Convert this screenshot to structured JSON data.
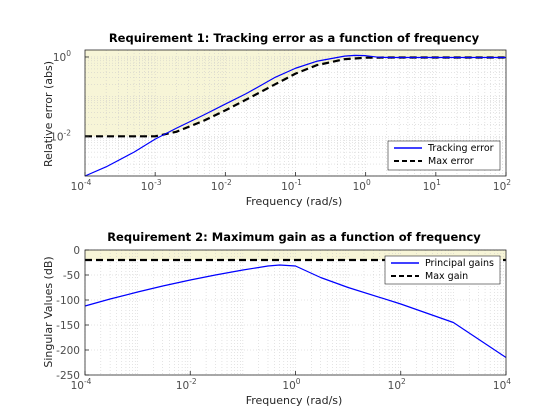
{
  "chart_data": [
    {
      "type": "line",
      "title": "Requirement 1: Tracking error as a function of frequency",
      "xlabel": "Frequency (rad/s)",
      "ylabel": "Relative error (abs)",
      "xscale": "log",
      "yscale": "log",
      "xlim": [
        0.0001,
        100
      ],
      "ylim": [
        0.001,
        1.5
      ],
      "x_ticks": [
        {
          "base": "10",
          "exp": "-4",
          "value": 0.0001
        },
        {
          "base": "10",
          "exp": "-3",
          "value": 0.001
        },
        {
          "base": "10",
          "exp": "-2",
          "value": 0.01
        },
        {
          "base": "10",
          "exp": "-1",
          "value": 0.1
        },
        {
          "base": "10",
          "exp": "0",
          "value": 1
        },
        {
          "base": "10",
          "exp": "1",
          "value": 10
        },
        {
          "base": "10",
          "exp": "2",
          "value": 100
        }
      ],
      "y_ticks": [
        {
          "base": "10",
          "exp": "-2",
          "value": 0.01
        },
        {
          "base": "10",
          "exp": "0",
          "value": 1
        }
      ],
      "grid": "minor",
      "shaded_region": "above max error",
      "legend": "bottom-right",
      "series": [
        {
          "name": "Tracking error",
          "color": "#0000ff",
          "style": "solid",
          "x": [
            0.0001,
            0.0002,
            0.0005,
            0.001,
            0.002,
            0.005,
            0.01,
            0.02,
            0.05,
            0.1,
            0.2,
            0.5,
            0.7,
            1,
            1.5,
            2,
            5,
            10,
            100
          ],
          "y": [
            0.001,
            0.0017,
            0.004,
            0.0085,
            0.016,
            0.035,
            0.065,
            0.12,
            0.3,
            0.52,
            0.78,
            1.05,
            1.1,
            1.08,
            0.99,
            0.97,
            0.97,
            0.97,
            0.97
          ]
        },
        {
          "name": "Max error",
          "color": "#000000",
          "style": "dashed",
          "x": [
            0.0001,
            0.001,
            0.002,
            0.005,
            0.01,
            0.02,
            0.05,
            0.1,
            0.2,
            0.5,
            1,
            2,
            10,
            100
          ],
          "y": [
            0.01,
            0.01,
            0.013,
            0.025,
            0.045,
            0.085,
            0.2,
            0.38,
            0.62,
            0.88,
            0.96,
            0.97,
            0.97,
            0.97
          ]
        }
      ]
    },
    {
      "type": "line",
      "title": "Requirement 2: Maximum gain as a function of frequency",
      "xlabel": "Frequency (rad/s)",
      "ylabel": "Singular Values (dB)",
      "xscale": "log",
      "yscale": "linear",
      "xlim": [
        0.0001,
        10000
      ],
      "ylim": [
        -250,
        0
      ],
      "x_ticks": [
        {
          "base": "10",
          "exp": "-4",
          "value": 0.0001
        },
        {
          "base": "10",
          "exp": "-2",
          "value": 0.01
        },
        {
          "base": "10",
          "exp": "0",
          "value": 1
        },
        {
          "base": "10",
          "exp": "2",
          "value": 100
        },
        {
          "base": "10",
          "exp": "4",
          "value": 10000
        }
      ],
      "y_ticks": [
        {
          "label": "0",
          "value": 0
        },
        {
          "label": "-50",
          "value": -50
        },
        {
          "label": "-100",
          "value": -100
        },
        {
          "label": "-150",
          "value": -150
        },
        {
          "label": "-200",
          "value": -200
        },
        {
          "label": "-250",
          "value": -250
        }
      ],
      "grid": "minor",
      "shaded_region": "above max gain",
      "legend": "top-right",
      "series": [
        {
          "name": "Principal gains",
          "color": "#0000ff",
          "style": "solid",
          "x": [
            0.0001,
            0.0003,
            0.001,
            0.003,
            0.01,
            0.03,
            0.1,
            0.3,
            0.5,
            1,
            3,
            10,
            100,
            1000,
            10000
          ],
          "y": [
            -112,
            -98,
            -84,
            -72,
            -60,
            -50,
            -40,
            -32,
            -30,
            -32,
            -55,
            -75,
            -108,
            -145,
            -215
          ]
        },
        {
          "name": "Max gain",
          "color": "#000000",
          "style": "dashed",
          "x": [
            0.0001,
            10000
          ],
          "y": [
            -20,
            -20
          ]
        }
      ]
    }
  ]
}
